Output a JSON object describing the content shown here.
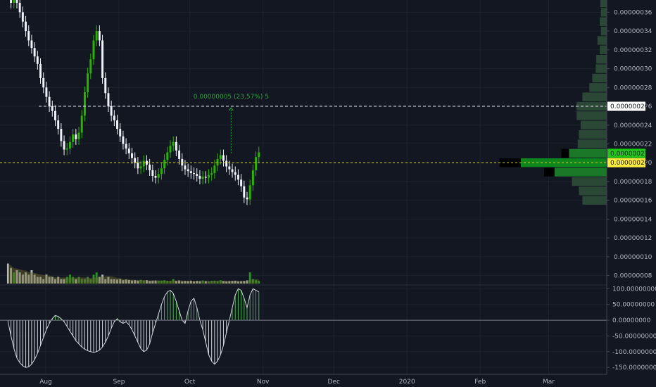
{
  "chart_data": [
    {
      "type": "candlestick",
      "panel": "price",
      "price_axis_ticks": [
        "0.00000036",
        "0.00000034",
        "0.00000032",
        "0.00000030",
        "0.00000028",
        "0.00000026",
        "0.00000024",
        "0.00000022",
        "0.00000020",
        "0.00000018",
        "0.00000016",
        "0.00000014",
        "0.00000012",
        "0.00000010",
        "0.00000008"
      ],
      "price_axis_ticks_num": [
        36,
        34,
        32,
        30,
        28,
        26,
        24,
        22,
        20,
        18,
        16,
        14,
        12,
        10,
        8
      ],
      "price_unit_scale": 1e-08,
      "ylim": [
        7,
        37.3
      ],
      "time_axis_labels": [
        "Aug",
        "Sep",
        "Oct",
        "Nov",
        "Dec",
        "2020",
        "Feb",
        "Mar"
      ],
      "time_axis_days": [
        0,
        31,
        61,
        92,
        122,
        153,
        184,
        213
      ],
      "xlim_days": [
        -19.4,
        237.6
      ],
      "price_labels": {
        "measure_high": "0.00000026",
        "last_price": "0.00000021",
        "poc_price": "0.00000020"
      },
      "price_labels_num": {
        "measure_high": 26,
        "last_price": 21,
        "poc_price": 20
      },
      "measure_annotation": "0.00000005 (23.57%) 5",
      "measure_range_days": [
        -3,
        79
      ],
      "measure_arrow_day": 78.5,
      "measure_arrow_from": 21,
      "poc_line_visible": true,
      "candles_close": [
        40,
        37,
        38.5,
        37,
        36,
        35,
        34,
        33,
        32.2,
        31.3,
        30.5,
        29,
        28,
        27,
        26,
        25.5,
        24.5,
        23.6,
        22.3,
        21.4,
        21.5,
        22.2,
        23,
        22.5,
        23.2,
        25,
        27.5,
        29.5,
        31,
        33,
        34,
        33,
        29,
        27.4,
        26,
        25,
        24.5,
        23.6,
        22.8,
        22,
        21.5,
        21,
        20.5,
        20,
        19.4,
        19.6,
        20.2,
        19.8,
        19.2,
        18.6,
        18.4,
        18.8,
        19.4,
        20.3,
        21.1,
        21.8,
        22.2,
        21.3,
        20.4,
        19.7,
        19.3,
        19.1,
        18.9,
        18.8,
        18.6,
        18.3,
        18.5,
        18.4,
        18.7,
        18.9,
        19.7,
        20.4,
        20.8,
        20.2,
        19.6,
        19.3,
        19,
        18.7,
        18.2,
        17.5,
        16.3,
        16.1,
        17.6,
        19.2,
        20.6,
        21.1
      ],
      "candle_width_days": 0.8
    },
    {
      "type": "histogram",
      "panel": "volume",
      "values": [
        9,
        7,
        5,
        6,
        5,
        4,
        5,
        4,
        6,
        4,
        3,
        3,
        2,
        4,
        3,
        3,
        2,
        3,
        2,
        2,
        3,
        4,
        3,
        2,
        3,
        2,
        2,
        3,
        2,
        4,
        5,
        3,
        4,
        2,
        3,
        2,
        2,
        1.8,
        2,
        1.5,
        1.8,
        1.6,
        1.4,
        1.5,
        1.3,
        1.7,
        1.4,
        1.5,
        1.2,
        1.3,
        1.4,
        1.2,
        1.3,
        1.5,
        1.2,
        1.1,
        2,
        1.2,
        1.4,
        1,
        1.2,
        1.1,
        1.3,
        1,
        1.2,
        1.1,
        1.4,
        1.1,
        1,
        1.2,
        1.3,
        1.1,
        1.5,
        1.2,
        1,
        1.1,
        1.2,
        1.3,
        1,
        1.1,
        1.2,
        1.4,
        5,
        2,
        1.5,
        1.2
      ]
    },
    {
      "type": "histogram",
      "panel": "oscillator",
      "axis_ticks": [
        "100.00000000",
        "50.00000000",
        "0.00000000",
        "-50.00000000",
        "-100.00000000",
        "-150.00000000"
      ],
      "axis_ticks_num": [
        100,
        50,
        0,
        -50,
        -100,
        -150
      ],
      "ylim": [
        -172,
        112
      ],
      "values": [
        -5,
        -50,
        -90,
        -120,
        -135,
        -145,
        -150,
        -148,
        -140,
        -125,
        -105,
        -80,
        -55,
        -30,
        -10,
        5,
        15,
        12,
        5,
        -5,
        -20,
        -35,
        -50,
        -65,
        -75,
        -85,
        -92,
        -97,
        -100,
        -102,
        -100,
        -95,
        -85,
        -70,
        -50,
        -25,
        -5,
        5,
        -5,
        -10,
        -5,
        -15,
        -30,
        -50,
        -70,
        -90,
        -100,
        -95,
        -75,
        -40,
        -10,
        20,
        50,
        75,
        90,
        95,
        85,
        60,
        30,
        0,
        -10,
        30,
        60,
        70,
        40,
        0,
        -30,
        -70,
        -110,
        -130,
        -140,
        -130,
        -110,
        -80,
        -40,
        0,
        40,
        80,
        100,
        95,
        70,
        40,
        80,
        100,
        95,
        90
      ]
    },
    {
      "type": "bar",
      "panel": "volume_profile",
      "orientation": "horizontal",
      "price_bins": [
        37,
        36,
        35,
        34,
        33,
        32,
        31,
        30,
        29,
        28,
        27,
        26,
        25,
        24,
        23,
        22,
        21,
        20,
        19,
        18,
        17,
        16
      ],
      "values": [
        0.11,
        0.1,
        0.12,
        0.1,
        0.16,
        0.12,
        0.18,
        0.19,
        0.25,
        0.3,
        0.42,
        0.52,
        0.52,
        0.45,
        0.48,
        0.5,
        0.65,
        1.48,
        0.9,
        0.6,
        0.48,
        0.42
      ]
    }
  ]
}
